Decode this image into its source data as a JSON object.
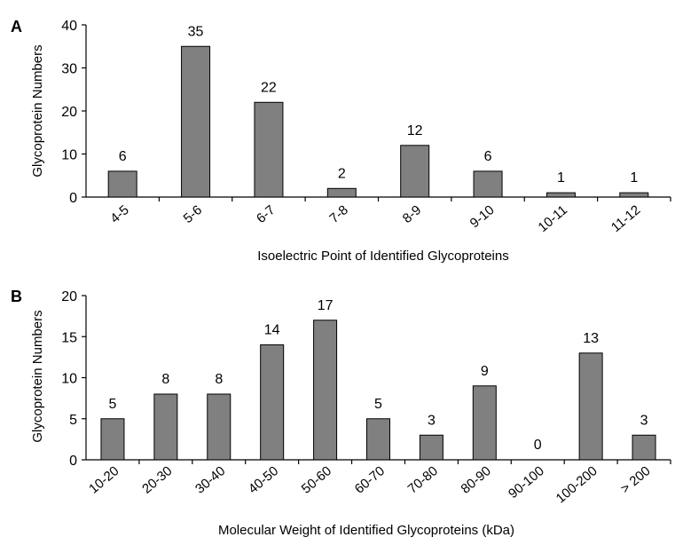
{
  "colors": {
    "bar_fill": "#808080",
    "bar_stroke": "#000000",
    "axis": "#000000",
    "background": "#ffffff"
  },
  "chart_data": [
    {
      "panel_label": "A",
      "type": "bar",
      "categories": [
        "4-5",
        "5-6",
        "6-7",
        "7-8",
        "8-9",
        "9-10",
        "10-11",
        "11-12"
      ],
      "values": [
        6,
        35,
        22,
        2,
        12,
        6,
        1,
        1
      ],
      "data_labels": [
        "6",
        "35",
        "22",
        "2",
        "12",
        "6",
        "1",
        "1"
      ],
      "xlabel": "Isoelectric Point of Identified Glycoproteins",
      "ylabel": "Glycoprotein Numbers",
      "ylim": [
        0,
        40
      ],
      "yticks": [
        0,
        10,
        20,
        30,
        40
      ],
      "ytick_labels": [
        "0",
        "10",
        "20",
        "30",
        "40"
      ],
      "grid": false,
      "legend": "none"
    },
    {
      "panel_label": "B",
      "type": "bar",
      "categories": [
        "10-20",
        "20-30",
        "30-40",
        "40-50",
        "50-60",
        "60-70",
        "70-80",
        "80-90",
        "90-100",
        "100-200",
        "> 200"
      ],
      "values": [
        5,
        8,
        8,
        14,
        17,
        5,
        3,
        9,
        0,
        13,
        3
      ],
      "data_labels": [
        "5",
        "8",
        "8",
        "14",
        "17",
        "5",
        "3",
        "9",
        "0",
        "13",
        "3"
      ],
      "xlabel": "Molecular Weight of Identified Glycoproteins (kDa)",
      "ylabel": "Glycoprotein Numbers",
      "ylim": [
        0,
        20
      ],
      "yticks": [
        0,
        5,
        10,
        15,
        20
      ],
      "ytick_labels": [
        "0",
        "5",
        "10",
        "15",
        "20"
      ],
      "grid": false,
      "legend": "none"
    }
  ]
}
